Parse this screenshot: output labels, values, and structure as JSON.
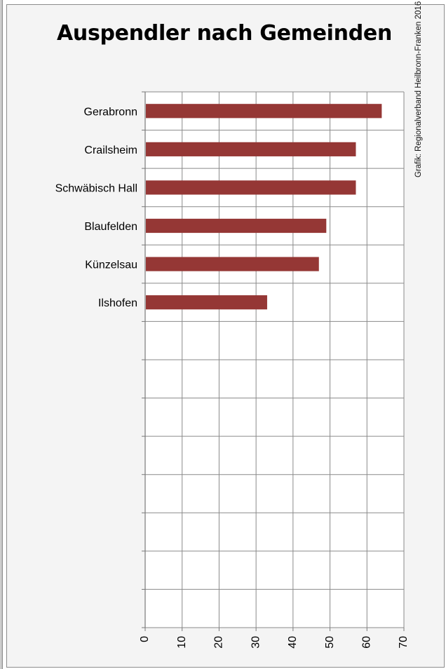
{
  "chart_data": {
    "type": "bar",
    "orientation": "horizontal",
    "title": "Auspendler nach Gemeinden",
    "source": "Grafik: Regionalverband Heilbronn-Franken 2016",
    "categories": [
      "Gerabronn",
      "Crailsheim",
      "Schwäbisch Hall",
      "Blaufelden",
      "Künzelsau",
      "Ilshofen"
    ],
    "values": [
      64,
      57,
      57,
      49,
      47,
      33
    ],
    "slots": 14,
    "xlim": [
      0,
      70
    ],
    "xticks": [
      0,
      10,
      20,
      30,
      40,
      50,
      60,
      70
    ],
    "xlabel": "",
    "ylabel": "",
    "grid": true,
    "bar_color": "#953735",
    "legend": "none"
  }
}
